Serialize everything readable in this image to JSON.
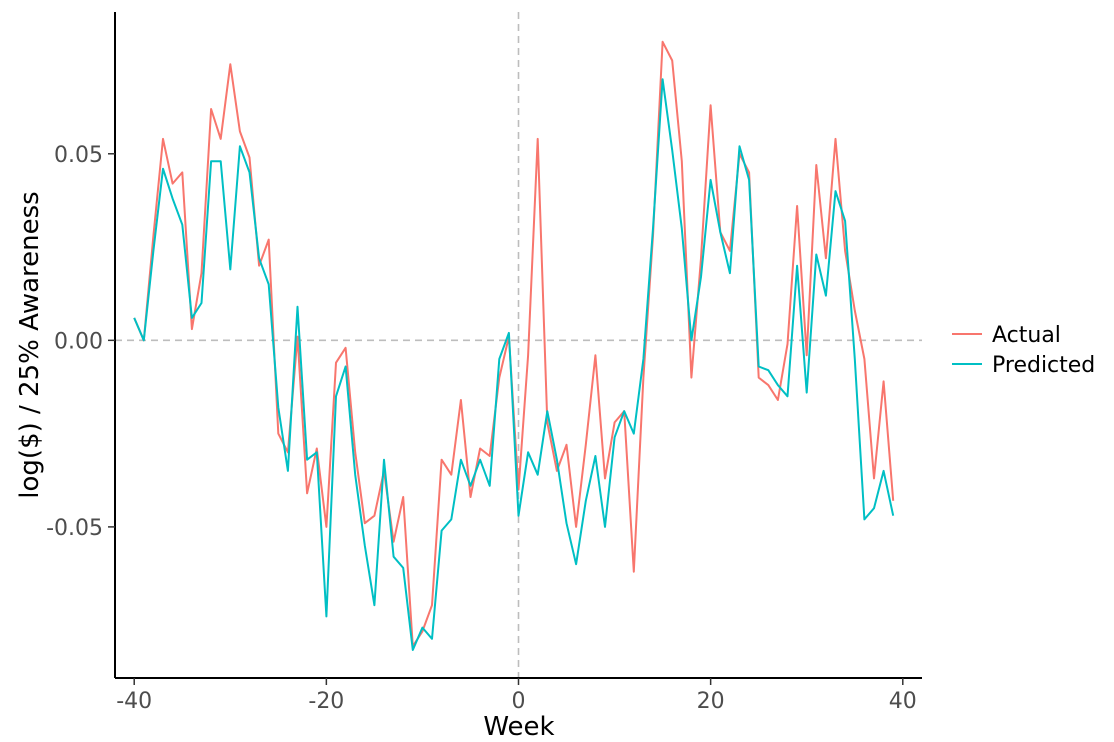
{
  "chart_data": {
    "type": "line",
    "title": "",
    "xlabel": "Week",
    "ylabel": "log($)  / 25% Awareness",
    "xlim": [
      -42,
      42
    ],
    "ylim": [
      -0.0905,
      0.088
    ],
    "xticks": [
      -40,
      -20,
      0,
      20,
      40
    ],
    "xtick_labels": [
      "-40",
      "-20",
      "0",
      "20",
      "40"
    ],
    "yticks": [
      -0.05,
      0.0,
      0.05
    ],
    "ytick_labels": [
      "-0.05",
      "0.00",
      "0.05"
    ],
    "reference_lines": {
      "x": 0,
      "y": 0,
      "style": "dashed"
    },
    "grid": false,
    "legend_position": "right",
    "x": [
      -40,
      -39,
      -38,
      -37,
      -36,
      -35,
      -34,
      -33,
      -32,
      -31,
      -30,
      -29,
      -28,
      -27,
      -26,
      -25,
      -24,
      -23,
      -22,
      -21,
      -20,
      -19,
      -18,
      -17,
      -16,
      -15,
      -14,
      -13,
      -12,
      -11,
      -10,
      -9,
      -8,
      -7,
      -6,
      -5,
      -4,
      -3,
      -2,
      -1,
      0,
      1,
      2,
      3,
      4,
      5,
      6,
      7,
      8,
      9,
      10,
      11,
      12,
      13,
      14,
      15,
      16,
      17,
      18,
      19,
      20,
      21,
      22,
      23,
      24,
      25,
      26,
      27,
      28,
      29,
      30,
      31,
      32,
      33,
      34,
      35,
      36,
      37,
      38,
      39
    ],
    "series": [
      {
        "name": "Actual",
        "color": "#F8766D",
        "values": [
          0.006,
          0.0,
          0.028,
          0.054,
          0.042,
          0.045,
          0.003,
          0.018,
          0.062,
          0.054,
          0.074,
          0.056,
          0.049,
          0.02,
          0.027,
          -0.025,
          -0.03,
          0.001,
          -0.041,
          -0.029,
          -0.05,
          -0.006,
          -0.002,
          -0.03,
          -0.049,
          -0.047,
          -0.035,
          -0.054,
          -0.042,
          -0.082,
          -0.078,
          -0.071,
          -0.032,
          -0.036,
          -0.016,
          -0.042,
          -0.029,
          -0.031,
          -0.01,
          0.001,
          -0.04,
          -0.004,
          0.054,
          -0.022,
          -0.035,
          -0.028,
          -0.05,
          -0.028,
          -0.004,
          -0.037,
          -0.022,
          -0.019,
          -0.062,
          -0.01,
          0.028,
          0.08,
          0.075,
          0.048,
          -0.01,
          0.022,
          0.063,
          0.029,
          0.024,
          0.05,
          0.045,
          -0.01,
          -0.012,
          -0.016,
          -0.001,
          0.036,
          -0.004,
          0.047,
          0.022,
          0.054,
          0.024,
          0.008,
          -0.005,
          -0.037,
          -0.011,
          -0.043
        ]
      },
      {
        "name": "Predicted",
        "color": "#00BFC4",
        "values": [
          0.006,
          0.0,
          0.024,
          0.046,
          0.038,
          0.031,
          0.006,
          0.01,
          0.048,
          0.048,
          0.019,
          0.052,
          0.045,
          0.022,
          0.015,
          -0.018,
          -0.035,
          0.009,
          -0.032,
          -0.03,
          -0.074,
          -0.015,
          -0.007,
          -0.036,
          -0.055,
          -0.071,
          -0.032,
          -0.058,
          -0.061,
          -0.083,
          -0.077,
          -0.08,
          -0.051,
          -0.048,
          -0.032,
          -0.039,
          -0.032,
          -0.039,
          -0.005,
          0.002,
          -0.047,
          -0.03,
          -0.036,
          -0.019,
          -0.032,
          -0.049,
          -0.06,
          -0.043,
          -0.031,
          -0.05,
          -0.026,
          -0.019,
          -0.025,
          -0.005,
          0.03,
          0.07,
          0.051,
          0.03,
          0.0,
          0.017,
          0.043,
          0.029,
          0.018,
          0.052,
          0.043,
          -0.007,
          -0.008,
          -0.012,
          -0.015,
          0.02,
          -0.014,
          0.023,
          0.012,
          0.04,
          0.032,
          -0.005,
          -0.048,
          -0.045,
          -0.035,
          -0.047
        ]
      }
    ]
  }
}
